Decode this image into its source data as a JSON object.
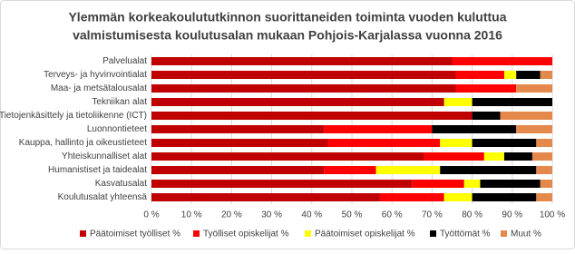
{
  "chart_data": {
    "type": "stacked-bar-horizontal",
    "title": "Ylemmän korkeakoulututkinnon suorittaneiden toiminta vuoden kuluttua",
    "subtitle": "valmistumisesta koulutusalan mukaan Pohjois-Karjalassa vuonna 2016",
    "categories": [
      "Palvelualat",
      "Terveys- ja hyvinvointialat",
      "Maa- ja metsätalousalat",
      "Tekniikan alat",
      "Tietojenkäsittely ja tietoliikenne (ICT)",
      "Luonnontieteet",
      "Kauppa, hallinto ja oikeustieteet",
      "Yhteiskunnalliset alat",
      "Humanistiset ja taidealat",
      "Kasvatusalat",
      "Koulutusalat yhteensä"
    ],
    "series": [
      {
        "name": "Päätoimiset työlliset %",
        "color": "#c00000",
        "values": [
          75,
          76,
          76,
          73,
          80,
          43,
          44,
          68,
          43,
          65,
          57
        ]
      },
      {
        "name": "Työlliset opiskelijat %",
        "color": "#ff0000",
        "values": [
          25,
          12,
          15,
          0,
          0,
          27,
          28,
          15,
          13,
          13,
          16
        ]
      },
      {
        "name": "Päätoimiset opiskelijat %",
        "color": "#ffff00",
        "values": [
          0,
          3,
          0,
          7,
          0,
          0,
          8,
          5,
          16,
          4,
          7
        ]
      },
      {
        "name": "Työttömät %",
        "color": "#000000",
        "values": [
          0,
          6,
          0,
          20,
          7,
          21,
          16,
          7,
          24,
          15,
          16
        ]
      },
      {
        "name": "Muut %",
        "color": "#e5884c",
        "values": [
          0,
          3,
          9,
          0,
          13,
          9,
          4,
          5,
          4,
          3,
          4
        ]
      }
    ],
    "xlim": [
      0,
      100
    ],
    "xticks": [
      {
        "value": 0,
        "label": "0 %"
      },
      {
        "value": 10,
        "label": "10 %"
      },
      {
        "value": 20,
        "label": "20 %"
      },
      {
        "value": 30,
        "label": "30 %"
      },
      {
        "value": 40,
        "label": "40 %"
      },
      {
        "value": 50,
        "label": "50 %"
      },
      {
        "value": 60,
        "label": "60 %"
      },
      {
        "value": 70,
        "label": "70 %"
      },
      {
        "value": 80,
        "label": "80 %"
      },
      {
        "value": 90,
        "label": "90 %"
      },
      {
        "value": 100,
        "label": "100 %"
      }
    ],
    "grid": true
  }
}
